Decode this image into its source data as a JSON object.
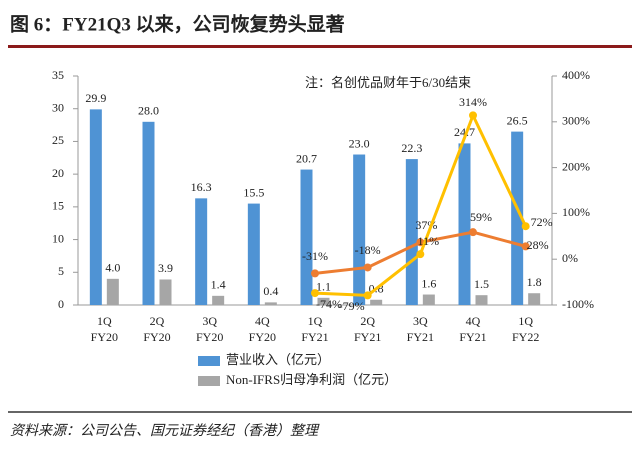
{
  "chart_data": {
    "type": "bar_line",
    "title": "图 6：FY21Q3 以来，公司恢复势头显著",
    "annotation": "注：名创优品财年于6/30结束",
    "source": "资料来源：公司公告、国元证券经纪（香港）整理",
    "categories": [
      [
        "1Q",
        "FY20"
      ],
      [
        "2Q",
        "FY20"
      ],
      [
        "3Q",
        "FY20"
      ],
      [
        "4Q",
        "FY20"
      ],
      [
        "1Q",
        "FY21"
      ],
      [
        "2Q",
        "FY21"
      ],
      [
        "3Q",
        "FY21"
      ],
      [
        "4Q",
        "FY21"
      ],
      [
        "1Q",
        "FY22"
      ]
    ],
    "series": [
      {
        "name": "营业收入（亿元）",
        "kind": "bar",
        "color": "#4f93d4",
        "values": [
          29.9,
          28.0,
          16.3,
          15.5,
          20.7,
          23.0,
          22.3,
          24.7,
          26.5
        ],
        "value_labels": [
          "29.9",
          "28.0",
          "16.3",
          "15.5",
          "20.7",
          "23.0",
          "22.3",
          "24.7",
          "26.5"
        ]
      },
      {
        "name": "Non-IFRS归母净利润（亿元）",
        "kind": "bar",
        "color": "#a6a6a6",
        "values": [
          4.0,
          3.9,
          1.4,
          0.4,
          1.1,
          0.8,
          1.6,
          1.5,
          1.8
        ],
        "value_labels": [
          "4.0",
          "3.9",
          "1.4",
          "0.4",
          "1.1",
          "0.8",
          "1.6",
          "1.5",
          "1.8"
        ]
      },
      {
        "kind": "line",
        "axis": "y2",
        "color": "#ed7d31",
        "values": [
          null,
          null,
          null,
          null,
          -31,
          -18,
          37,
          59,
          28
        ],
        "value_labels": [
          null,
          null,
          null,
          null,
          "-31%",
          "-18%",
          "37%",
          "59%",
          "28%"
        ]
      },
      {
        "kind": "line",
        "axis": "y2",
        "color": "#ffc000",
        "values": [
          null,
          null,
          null,
          null,
          -74,
          -79,
          11,
          314,
          72
        ],
        "value_labels": [
          null,
          null,
          null,
          null,
          "-74%",
          "-79%",
          "11%",
          "314%",
          "72%"
        ]
      }
    ],
    "ylim": [
      0,
      35
    ],
    "yticks": [
      0,
      5,
      10,
      15,
      20,
      25,
      30,
      35
    ],
    "y2lim": [
      -100,
      400
    ],
    "y2ticks": [
      {
        "value": -100,
        "label": "-100%"
      },
      {
        "value": 0,
        "label": "0%"
      },
      {
        "value": 100,
        "label": "100%"
      },
      {
        "value": 200,
        "label": "200%"
      },
      {
        "value": 300,
        "label": "300%"
      },
      {
        "value": 400,
        "label": "400%"
      }
    ]
  }
}
